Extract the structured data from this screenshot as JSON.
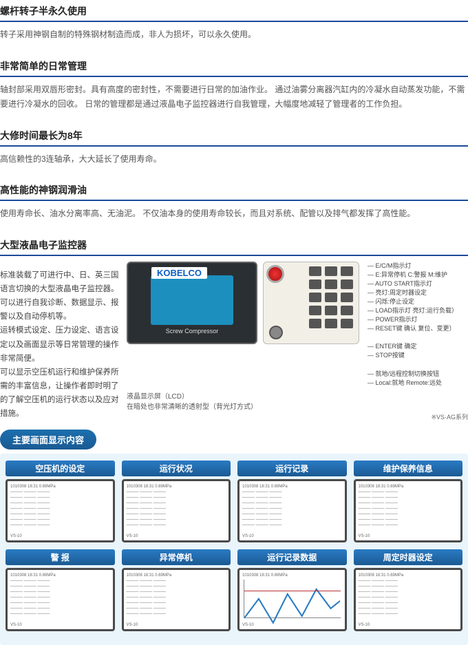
{
  "sections": [
    {
      "title": "螺杆转子半永久使用",
      "body": "转子采用神钢自制的特殊钢材制造而成，非人为损坏，可以永久使用。"
    },
    {
      "title": "非常简单的日常管理",
      "body": "轴封部采用双唇形密封。具有高度的密封性，不需要进行日常的加油作业。 通过油雾分离器汽缸内的冷凝水自动蒸发功能，不需要进行冷凝水的回收。 日常的管理都是通过液晶电子监控器进行自我管理，大幅度地减轻了管理者的工作负担。"
    },
    {
      "title": "大修时间最长为8年",
      "body": "高信赖性的3连轴承，大大延长了使用寿命。"
    },
    {
      "title": "高性能的神钢润滑油",
      "body": "使用寿命长、油水分离率高、无油泥。 不仅油本身的使用寿命较长，而且对系统、配管以及排气都发挥了高性能。"
    }
  ],
  "monitor_title": "大型液晶电子监控器",
  "monitor_desc": [
    "标准装载了可进行中、日、英三国语言切换的大型液晶电子监控器。",
    "可以进行自我诊断、数据显示、报警以及自动停机等。",
    "运转模式设定、压力设定、语言设定以及画面显示等日常管理的操作非常简便。",
    "可以显示空压机运行和维护保养所需的丰富信息，让操作者即时明了的了解空压机的运行状态以及应对措施。"
  ],
  "brand": "KOBELCO",
  "screw_label": "Screw Compressor",
  "lcd_caption": "液晶显示屏（LCD）",
  "lcd_subcaption": "在暗处也非常清晰的透射型（背光灯方式）",
  "annotations": [
    "E/C/M指示灯",
    "E:异常停机 C:警报 M:维护",
    "AUTO START指示灯",
    "亮灯:周定时器设定",
    "闪烁:停止设定",
    "LOAD指示灯 亮灯:运行负载）",
    "POWER指示灯",
    "RESET键 确认 复位、变更）",
    "",
    "ENTER键 确定",
    "STOP按键",
    "",
    "就地/远程控制切换按钮",
    "Local:就地 Remote:远处"
  ],
  "series_note": "※VS·AG系列",
  "banner": "主要画面显示内容",
  "thumbs_row1": [
    "空压机的设定",
    "运行状况",
    "运行记录",
    "维护保养信息"
  ],
  "thumbs_row2": [
    "警 报",
    "异常停机",
    "运行记录数据",
    "周定时器设定"
  ],
  "colors": {
    "rule": "#1b4a9c",
    "banner1": "#1b6fae",
    "banner2": "#1a5a93",
    "thumbBg": "#e9f4fb",
    "lcdScreen": "#1c8fbf"
  }
}
